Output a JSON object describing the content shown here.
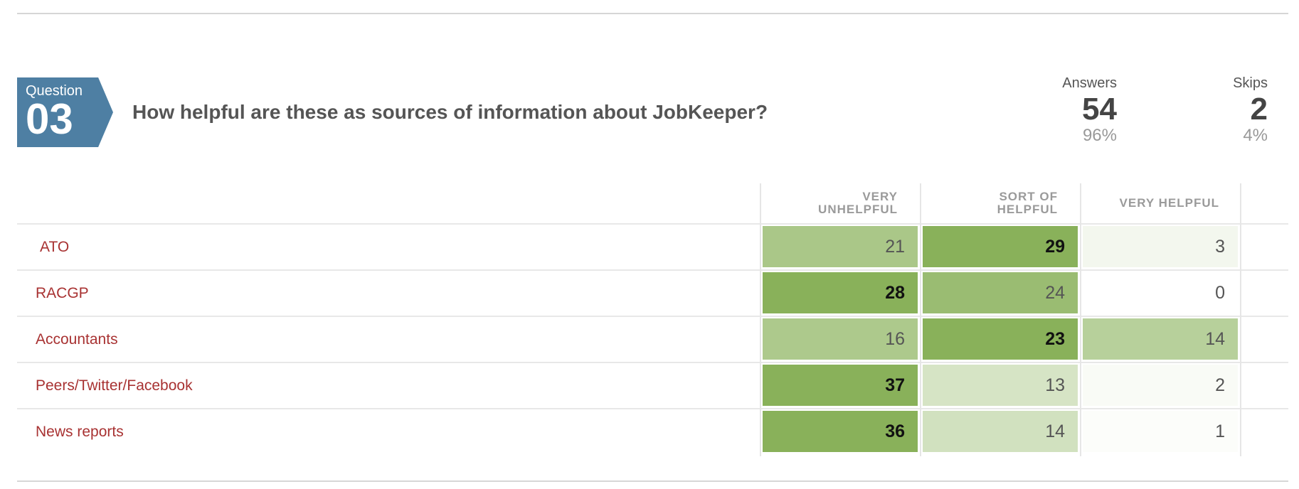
{
  "question": {
    "badge_label": "Question",
    "number": "03",
    "title": "How helpful are these as sources of information about JobKeeper?"
  },
  "stats": {
    "answers_label": "Answers",
    "answers_count": "54",
    "answers_pct": "96%",
    "skips_label": "Skips",
    "skips_count": "2",
    "skips_pct": "4%"
  },
  "columns": [
    "VERY UNHELPFUL",
    "SORT OF HELPFUL",
    "VERY HELPFUL"
  ],
  "rows": [
    {
      "label": "ATO",
      "values": [
        "21",
        "29",
        "3"
      ]
    },
    {
      "label": "RACGP",
      "values": [
        "28",
        "24",
        "0"
      ]
    },
    {
      "label": "Accountants",
      "values": [
        "16",
        "23",
        "14"
      ]
    },
    {
      "label": "Peers/Twitter/Facebook",
      "values": [
        "37",
        "13",
        "2"
      ]
    },
    {
      "label": "News reports",
      "values": [
        "36",
        "14",
        "1"
      ]
    }
  ],
  "colors": {
    "badge": "#4e7fa3",
    "row_label": "#a83232",
    "heat_max": "#89b15a",
    "heat_min": "#ffffff"
  }
}
